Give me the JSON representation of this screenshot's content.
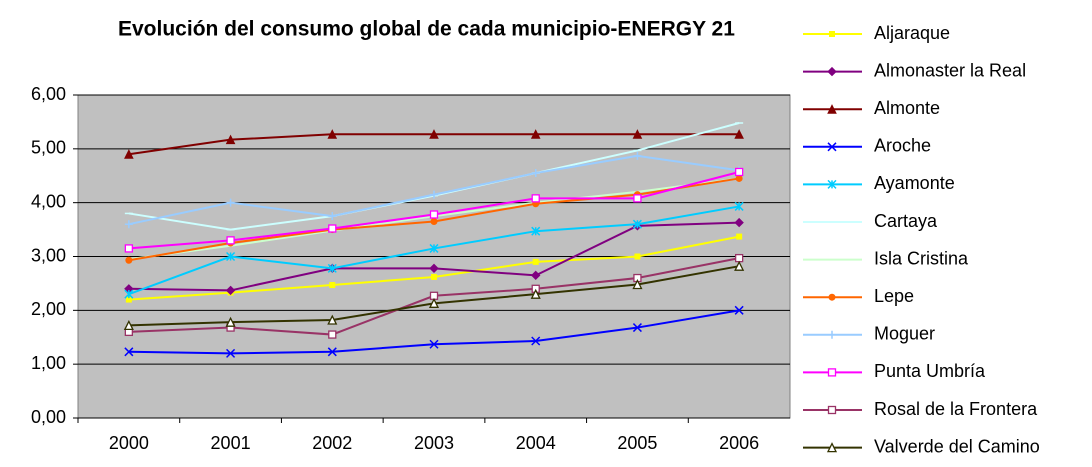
{
  "chart_data": {
    "type": "line",
    "title": "Evolución del consumo global de cada municipio-ENERGY 21",
    "categories": [
      "2000",
      "2001",
      "2002",
      "2003",
      "2004",
      "2005",
      "2006"
    ],
    "ylim": [
      0,
      6
    ],
    "yticks": [
      {
        "value": 0,
        "label": "0,00"
      },
      {
        "value": 1,
        "label": "1,00"
      },
      {
        "value": 2,
        "label": "2,00"
      },
      {
        "value": 3,
        "label": "3,00"
      },
      {
        "value": 4,
        "label": "4,00"
      },
      {
        "value": 5,
        "label": "5,00"
      },
      {
        "value": 6,
        "label": "6,00"
      }
    ],
    "grid": true,
    "legend": "right",
    "series": [
      {
        "name": "Aljaraque",
        "color": "#ffff00",
        "marker": "square",
        "values": [
          2.2,
          2.33,
          2.47,
          2.62,
          2.9,
          3.0,
          3.37
        ]
      },
      {
        "name": "Almonaster la Real",
        "color": "#800080",
        "marker": "diamond",
        "values": [
          2.4,
          2.37,
          2.78,
          2.78,
          2.65,
          3.57,
          3.63
        ]
      },
      {
        "name": "Almonte",
        "color": "#800000",
        "marker": "triangle",
        "values": [
          4.9,
          5.17,
          5.27,
          5.27,
          5.27,
          5.27,
          5.27
        ]
      },
      {
        "name": "Aroche",
        "color": "#0000ff",
        "marker": "x",
        "values": [
          1.23,
          1.2,
          1.23,
          1.37,
          1.43,
          1.68,
          2.0
        ]
      },
      {
        "name": "Ayamonte",
        "color": "#00ccff",
        "marker": "star",
        "values": [
          2.3,
          3.0,
          2.78,
          3.15,
          3.47,
          3.6,
          3.93
        ]
      },
      {
        "name": "Cartaya",
        "color": "#ccffff",
        "marker": "dash",
        "values": [
          3.8,
          3.5,
          3.75,
          4.13,
          4.55,
          4.97,
          5.48
        ]
      },
      {
        "name": "Isla Cristina",
        "color": "#ccffcc",
        "marker": "none",
        "values": [
          2.95,
          3.2,
          3.48,
          3.75,
          4.0,
          4.2,
          4.45
        ]
      },
      {
        "name": "Lepe",
        "color": "#ff6600",
        "marker": "circle",
        "values": [
          2.93,
          3.25,
          3.5,
          3.65,
          3.98,
          4.15,
          4.45
        ]
      },
      {
        "name": "Moguer",
        "color": "#99ccff",
        "marker": "plus",
        "values": [
          3.6,
          4.0,
          3.75,
          4.15,
          4.55,
          4.87,
          4.6
        ]
      },
      {
        "name": "Punta Umbría",
        "color": "#ff00ff",
        "marker": "square-open",
        "values": [
          3.15,
          3.3,
          3.52,
          3.78,
          4.08,
          4.08,
          4.57
        ]
      },
      {
        "name": "Rosal de la Frontera",
        "color": "#993366",
        "marker": "square-open",
        "values": [
          1.6,
          1.68,
          1.55,
          2.27,
          2.4,
          2.6,
          2.97
        ]
      },
      {
        "name": "Valverde del Camino",
        "color": "#333300",
        "marker": "triangle-open",
        "values": [
          1.72,
          1.78,
          1.82,
          2.13,
          2.3,
          2.48,
          2.82
        ]
      }
    ]
  }
}
